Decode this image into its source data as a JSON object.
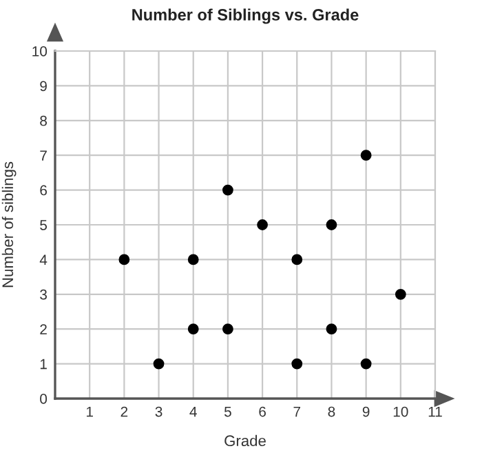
{
  "chart_data": {
    "type": "scatter",
    "title": "Number of Siblings vs. Grade",
    "xlabel": "Grade",
    "ylabel": "Number of siblings",
    "x": [
      2,
      3,
      4,
      4,
      5,
      5,
      6,
      7,
      7,
      8,
      8,
      9,
      9,
      10
    ],
    "values": [
      4,
      1,
      4,
      2,
      6,
      2,
      5,
      4,
      1,
      5,
      2,
      7,
      1,
      3
    ],
    "color": "#000000",
    "marker": "circle",
    "xlim": [
      0,
      11
    ],
    "ylim": [
      0,
      10
    ],
    "xticks": [
      1,
      2,
      3,
      4,
      5,
      6,
      7,
      8,
      9,
      10,
      11
    ],
    "yticks": [
      0,
      1,
      2,
      3,
      4,
      5,
      6,
      7,
      8,
      9,
      10
    ],
    "grid": true,
    "legend": false
  }
}
